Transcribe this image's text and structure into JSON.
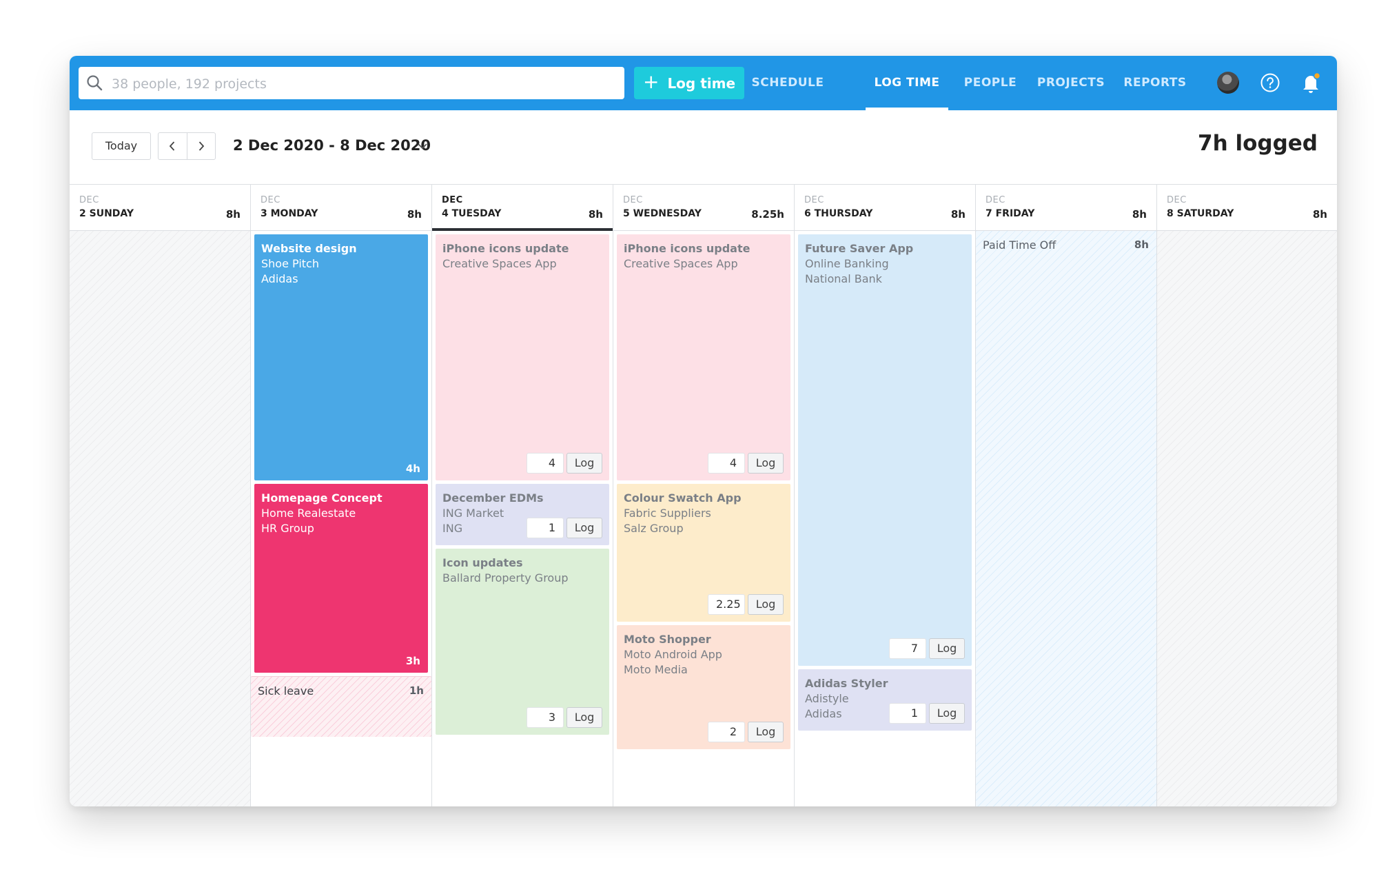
{
  "search": {
    "placeholder": "38 people, 192 projects"
  },
  "log_time_button": {
    "label": "Log time"
  },
  "nav": [
    "SCHEDULE",
    "LOG TIME",
    "PEOPLE",
    "PROJECTS",
    "REPORTS"
  ],
  "nav_active": "LOG TIME",
  "toolbar": {
    "today_label": "Today",
    "date_range": "2 Dec 2020 - 8 Dec 2020",
    "logged_total": "7h logged"
  },
  "colors": {
    "header_blue": "#2196e6",
    "log_button": "#1ecbdc",
    "blue": "#4aa8e6",
    "magenta": "#ee3570",
    "pink": "#fde0e6",
    "lavender": "#dfe1f3",
    "green": "#dcefd7",
    "yellow": "#fdeccb",
    "peach": "#fde2d6",
    "light_blue": "#d6eaf9",
    "notification_dot": "#f7a823"
  },
  "days": [
    {
      "month": "DEC",
      "label": "2 SUNDAY",
      "hours": "8h"
    },
    {
      "month": "DEC",
      "label": "3 MONDAY",
      "hours": "8h"
    },
    {
      "month": "DEC",
      "label": "4 TUESDAY",
      "hours": "8h"
    },
    {
      "month": "DEC",
      "label": "5 WEDNESDAY",
      "hours": "8.25h"
    },
    {
      "month": "DEC",
      "label": "6 THURSDAY",
      "hours": "8h"
    },
    {
      "month": "DEC",
      "label": "7 FRIDAY",
      "hours": "8h"
    },
    {
      "month": "DEC",
      "label": "8 SATURDAY",
      "hours": "8h"
    }
  ],
  "entries": {
    "mon_website": {
      "title": "Website design",
      "line1": "Shoe Pitch",
      "line2": "Adidas",
      "duration": "4h"
    },
    "mon_homepage": {
      "title": "Homepage Concept",
      "line1": "Home Realestate",
      "line2": "HR Group",
      "duration": "3h"
    },
    "mon_sick": {
      "title": "Sick leave",
      "duration": "1h"
    },
    "tue_iphone": {
      "title": "iPhone icons update",
      "line1": "Creative Spaces App",
      "qty": "4",
      "log": "Log"
    },
    "tue_edms": {
      "title": "December EDMs",
      "line1": "ING Market",
      "line2": "ING",
      "qty": "1",
      "log": "Log"
    },
    "tue_icon": {
      "title": "Icon updates",
      "line1": "Ballard Property Group",
      "qty": "3",
      "log": "Log"
    },
    "wed_iphone": {
      "title": "iPhone icons update",
      "line1": "Creative Spaces App",
      "qty": "4",
      "log": "Log"
    },
    "wed_swatch": {
      "title": "Colour Swatch App",
      "line1": "Fabric Suppliers",
      "line2": "Salz Group",
      "qty": "2.25",
      "log": "Log"
    },
    "wed_moto": {
      "title": "Moto Shopper",
      "line1": "Moto Android App",
      "line2": "Moto Media",
      "qty": "2",
      "log": "Log"
    },
    "thu_future": {
      "title": "Future Saver App",
      "line1": "Online Banking",
      "line2": "National Bank",
      "qty": "7",
      "log": "Log"
    },
    "thu_styler": {
      "title": "Adidas Styler",
      "line1": "Adistyle",
      "line2": "Adidas",
      "qty": "1",
      "log": "Log"
    },
    "fri_pto": {
      "title": "Paid Time Off",
      "duration": "8h"
    }
  }
}
